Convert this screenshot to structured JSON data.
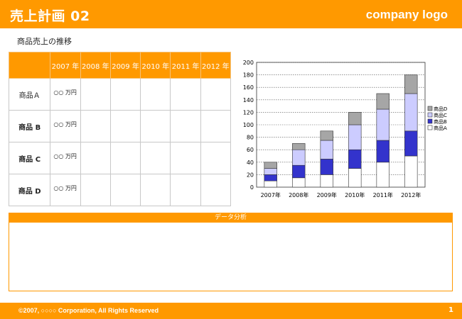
{
  "header": {
    "title": "売上計画 02",
    "logo": "company logo"
  },
  "section_title": "商品売上の推移",
  "table": {
    "years": [
      "2007 年",
      "2008 年",
      "2009 年",
      "2010 年",
      "2011 年",
      "2012 年"
    ],
    "rows": [
      {
        "name": "商品Ａ",
        "value": "○○ 万円"
      },
      {
        "name": "商品 B",
        "value": "○○ 万円"
      },
      {
        "name": "商品 C",
        "value": "○○ 万円"
      },
      {
        "name": "商品 D",
        "value": "○○ 万円"
      }
    ]
  },
  "chart_data": {
    "type": "bar",
    "stacked": true,
    "categories": [
      "2007年",
      "2008年",
      "2009年",
      "2010年",
      "2011年",
      "2012年"
    ],
    "series": [
      {
        "name": "商品A",
        "color": "#ffffff",
        "values": [
          10,
          15,
          20,
          30,
          40,
          50
        ]
      },
      {
        "name": "商品B",
        "color": "#3333cc",
        "values": [
          10,
          20,
          25,
          30,
          35,
          40
        ]
      },
      {
        "name": "商品C",
        "color": "#ccccff",
        "values": [
          10,
          25,
          30,
          40,
          50,
          60
        ]
      },
      {
        "name": "商品D",
        "color": "#a6a6a6",
        "values": [
          10,
          10,
          15,
          20,
          25,
          30
        ]
      }
    ],
    "ylim": [
      0,
      200
    ],
    "yticks": [
      0,
      20,
      40,
      60,
      80,
      100,
      120,
      140,
      160,
      180,
      200
    ],
    "grid": true,
    "legend": "right"
  },
  "analysis": {
    "title": "データ分析"
  },
  "footer": {
    "copyright": "©2007, ○○○○ Corporation, All Rights Reserved",
    "page": "1"
  }
}
